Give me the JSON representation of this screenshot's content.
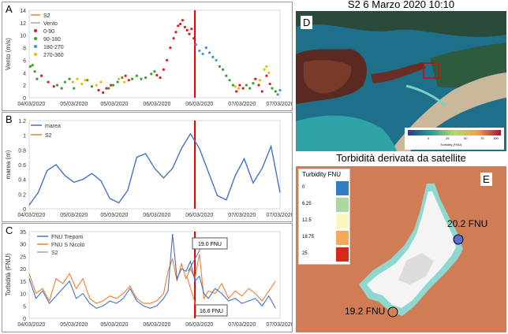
{
  "chart_data": [
    {
      "type": "scatter",
      "panel_label": "A",
      "ylabel": "Vento (m/s)",
      "ylim": [
        0,
        14
      ],
      "yticks": [
        "0",
        "2",
        "4",
        "6",
        "8",
        "10",
        "12",
        "14"
      ],
      "xticks": [
        "04/03/2020",
        "05/03/2020",
        "05/03/2020",
        "06/03/2020",
        "06/03/2020",
        "07/03/2020",
        "07/03/2020"
      ],
      "legend": [
        "S2",
        "Vento",
        "0-90",
        "90-180",
        "180-270",
        "270-360"
      ],
      "groups": [
        {
          "name": "0-90",
          "color": "#e31a1c",
          "x": [
            0.55,
            0.85,
            1.1,
            3.1,
            3.3,
            3.45,
            3.65,
            4.3,
            4.45,
            5.7,
            5.85,
            6.0,
            6.15,
            6.3,
            6.45,
            6.55,
            6.65,
            6.75,
            6.85,
            6.95,
            7.05,
            7.15,
            7.25,
            7.35,
            9.25,
            9.4,
            9.55,
            10.1,
            10.25,
            10.4,
            10.6,
            10.75
          ],
          "y": [
            3.5,
            2.5,
            1.8,
            1.2,
            0.8,
            1.5,
            2.0,
            3.5,
            2.8,
            3.6,
            3.2,
            4.5,
            6.0,
            8.0,
            9.5,
            10.5,
            11.5,
            11.8,
            12.4,
            11.3,
            10.8,
            10.2,
            11.0,
            9.5,
            1.0,
            2.0,
            1.5,
            3.0,
            2.0,
            1.0,
            3.5,
            2.2
          ]
        },
        {
          "name": "90-180",
          "color": "#33a02c",
          "x": [
            0.05,
            0.15,
            0.25,
            0.35,
            1.25,
            1.45,
            1.6,
            1.8,
            2.0,
            2.6,
            2.8,
            3.55,
            3.75,
            3.95,
            4.15,
            4.6,
            4.8,
            5.0,
            5.2,
            5.45,
            5.6,
            8.5,
            8.65,
            8.8,
            8.95,
            9.1,
            9.7,
            9.85,
            10.0,
            10.85,
            11.0
          ],
          "y": [
            5.0,
            5.2,
            4.2,
            3.0,
            2.0,
            1.5,
            2.5,
            3.0,
            1.5,
            2.8,
            1.8,
            1.5,
            2.0,
            2.5,
            3.2,
            3.0,
            3.5,
            3.0,
            3.2,
            3.8,
            4.2,
            5.0,
            4.5,
            3.5,
            2.8,
            2.0,
            2.0,
            1.5,
            2.3,
            1.5,
            1.0
          ]
        },
        {
          "name": "180-270",
          "color": "#4a90d9",
          "x": [
            7.45,
            7.6,
            7.75,
            7.9,
            8.05,
            8.2,
            8.35,
            11.1,
            11.2
          ],
          "y": [
            8.5,
            7.5,
            7.0,
            8.0,
            7.2,
            6.5,
            6.0,
            0.5,
            1.2
          ]
        },
        {
          "name": "270-360",
          "color": "#f5b800",
          "x": [
            1.95,
            2.15,
            2.35,
            2.5,
            3.0,
            3.2,
            4.0,
            4.25,
            9.2,
            9.35,
            10.3,
            10.5,
            10.6,
            10.7
          ],
          "y": [
            2.5,
            3.0,
            2.2,
            2.8,
            2.0,
            2.5,
            3.0,
            2.5,
            1.8,
            1.5,
            2.8,
            4.5,
            5.0,
            4.0
          ]
        }
      ]
    },
    {
      "type": "line",
      "panel_label": "B",
      "ylabel": "marea (m)",
      "ylim": [
        0,
        1.2
      ],
      "yticks": [
        "0",
        "0.2",
        "0.4",
        "0.6",
        "0.8",
        "1",
        "1.2"
      ],
      "xticks": [
        "04/03/2020",
        "05/03/2020",
        "05/03/2020",
        "06/03/2020",
        "06/03/2020",
        "07/03/2020",
        "07/03/2020"
      ],
      "legend": [
        "marea",
        "S2"
      ],
      "series": [
        {
          "name": "marea",
          "color": "#4472c4",
          "x": [
            0,
            0.4,
            0.8,
            1.2,
            1.6,
            2.0,
            2.4,
            2.8,
            3.2,
            3.6,
            4.0,
            4.4,
            4.8,
            5.2,
            5.6,
            6.0,
            6.4,
            6.8,
            7.2,
            7.6,
            8.0,
            8.4,
            8.8,
            9.2,
            9.6,
            10.0,
            10.4,
            10.8,
            11.2
          ],
          "y": [
            0.05,
            0.22,
            0.52,
            0.6,
            0.45,
            0.36,
            0.4,
            0.48,
            0.38,
            0.14,
            0.08,
            0.25,
            0.7,
            0.75,
            0.55,
            0.42,
            0.55,
            0.82,
            1.02,
            0.82,
            0.5,
            0.18,
            0.12,
            0.45,
            0.68,
            0.35,
            0.55,
            0.85,
            0.22
          ]
        }
      ]
    },
    {
      "type": "line",
      "panel_label": "C",
      "ylabel": "Torbidità (FNU)",
      "ylim": [
        0,
        35
      ],
      "yticks": [
        "0",
        "5",
        "10",
        "15",
        "20",
        "25",
        "30",
        "35"
      ],
      "xticks": [
        "04/03/2020",
        "05/03/2020",
        "05/03/2020",
        "06/03/2020",
        "06/03/2020",
        "07/03/2020",
        "07/03/2020"
      ],
      "legend": [
        "FNU Treporti",
        "FNU S Nicolò",
        "S2"
      ],
      "annotations": [
        "19.0 FNU",
        "16.6 FNU"
      ],
      "series": [
        {
          "name": "FNU Treporti",
          "color": "#4472c4",
          "x": [
            0,
            0.3,
            0.6,
            0.9,
            1.2,
            1.5,
            1.8,
            2.1,
            2.4,
            2.7,
            3.0,
            3.3,
            3.6,
            3.9,
            4.2,
            4.5,
            4.8,
            5.1,
            5.4,
            5.7,
            6.0,
            6.2,
            6.4,
            6.6,
            6.8,
            7.0,
            7.2,
            7.4,
            7.6,
            7.8,
            8.0,
            8.3,
            8.6,
            8.9,
            9.2,
            9.5,
            9.8,
            10.1,
            10.4,
            10.7,
            11.0
          ],
          "y": [
            16,
            8,
            11,
            6,
            9,
            12,
            15,
            8,
            10,
            6,
            4,
            5,
            7,
            6,
            8,
            12,
            7,
            5,
            4,
            5,
            8,
            11,
            34,
            16,
            20,
            19,
            23,
            15,
            17,
            10,
            8,
            12,
            10,
            7,
            8,
            6,
            7,
            8,
            5,
            9,
            4
          ]
        },
        {
          "name": "FNU S Nicolò",
          "color": "#ed7d31",
          "x": [
            0,
            0.3,
            0.6,
            0.9,
            1.2,
            1.5,
            1.8,
            2.1,
            2.4,
            2.7,
            3.0,
            3.3,
            3.6,
            3.9,
            4.2,
            4.5,
            4.8,
            5.1,
            5.4,
            5.7,
            6.0,
            6.2,
            6.4,
            6.6,
            6.8,
            7.0,
            7.2,
            7.4,
            7.6,
            7.8,
            8.0,
            8.3,
            8.6,
            8.9,
            9.2,
            9.5,
            9.8,
            10.1,
            10.4,
            10.7,
            11.0
          ],
          "y": [
            18,
            10,
            12,
            7,
            16,
            14,
            18,
            12,
            16,
            8,
            6,
            7,
            9,
            8,
            10,
            13,
            8,
            6,
            6,
            7,
            10,
            19,
            24,
            15,
            22,
            16,
            20,
            16,
            26,
            8,
            11,
            10,
            14,
            8,
            11,
            9,
            12,
            10,
            7,
            11,
            15
          ]
        }
      ]
    }
  ],
  "right": {
    "title_d": "S2 6 Marzo 2020 10:10",
    "label_d": "D",
    "colorbar_label": "Turbidity (FNU)",
    "colorbar_ticks": [
      "0",
      "25",
      "50",
      "75",
      "100"
    ],
    "title_e": "Torbidità derivata da satellite",
    "label_e": "E",
    "legend": {
      "title": "Turbidity FNU",
      "items": [
        {
          "label": "0",
          "color": "#2f7fc1"
        },
        {
          "label": "6.25",
          "color": "#a8d8a0"
        },
        {
          "label": "12.5",
          "color": "#fbf6c0"
        },
        {
          "label": "18.75",
          "color": "#f7a85a"
        },
        {
          "label": "25",
          "color": "#d7281c"
        }
      ]
    },
    "point1": "20.2 FNU",
    "point2": "19.2 FNU"
  }
}
